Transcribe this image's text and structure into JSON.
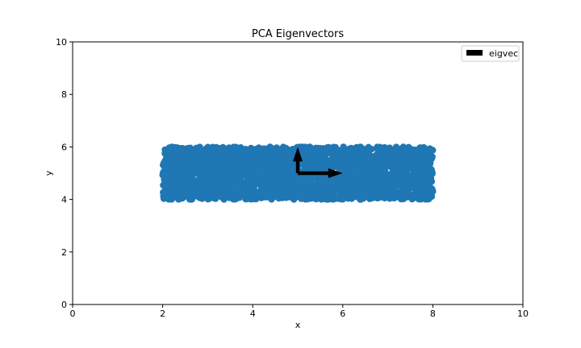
{
  "chart_data": {
    "type": "scatter",
    "title": "PCA Eigenvectors",
    "xlabel": "x",
    "ylabel": "y",
    "xlim": [
      0,
      10
    ],
    "ylim": [
      0,
      10
    ],
    "xticks": [
      0,
      2,
      4,
      6,
      8,
      10
    ],
    "yticks": [
      0,
      2,
      4,
      6,
      8,
      10
    ],
    "point_color": "#1f77b4",
    "scatter_region": {
      "x": [
        2,
        8
      ],
      "y": [
        4,
        6
      ]
    },
    "arrows": [
      {
        "name": "eigvec",
        "start": [
          5,
          5
        ],
        "end": [
          6,
          5
        ],
        "color": "#000000"
      },
      {
        "name": "eigvec",
        "start": [
          5,
          5
        ],
        "end": [
          5,
          6
        ],
        "color": "#000000"
      }
    ],
    "legend": {
      "entries": [
        "eigvec"
      ],
      "position": "top-right"
    },
    "grid": false
  }
}
